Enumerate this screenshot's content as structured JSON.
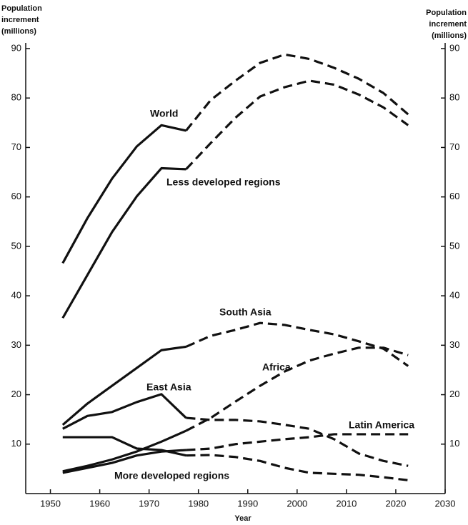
{
  "chart_data": {
    "type": "line",
    "y_label": [
      "Population",
      "increment",
      "(millions)"
    ],
    "y2_label": [
      "Population",
      "increment",
      "(millions)"
    ],
    "x_label": "Year",
    "x": [
      1952.5,
      1957.5,
      1962.5,
      1967.5,
      1972.5,
      1977.5,
      1982.5,
      1987.5,
      1992.5,
      1997.5,
      2002.5,
      2007.5,
      2012.5,
      2017.5,
      2022.5
    ],
    "projection_start": 1977.5,
    "series": [
      {
        "name": "World",
        "color": "#111111",
        "values": [
          46.6,
          55.7,
          63.7,
          70.2,
          74.5,
          73.4,
          79.6,
          83.5,
          87.1,
          88.8,
          87.9,
          86.1,
          83.9,
          81.0,
          76.7
        ]
      },
      {
        "name": "Less developed regions",
        "color": "#111111",
        "values": [
          35.5,
          44.2,
          52.9,
          60.1,
          65.8,
          65.6,
          70.9,
          76.0,
          80.3,
          82.2,
          83.5,
          82.7,
          80.7,
          78.1,
          74.5
        ]
      },
      {
        "name": "South Asia",
        "color": "#111111",
        "values": [
          13.9,
          18.2,
          21.8,
          25.4,
          29.0,
          29.7,
          31.9,
          33.1,
          34.5,
          34.1,
          33.1,
          32.2,
          30.8,
          29.3,
          25.8
        ]
      },
      {
        "name": "Africa",
        "color": "#111111",
        "values": [
          4.5,
          5.6,
          6.9,
          8.5,
          10.5,
          12.7,
          15.3,
          18.6,
          21.8,
          24.7,
          26.9,
          28.3,
          29.5,
          29.5,
          28.0
        ]
      },
      {
        "name": "East Asia",
        "color": "#111111",
        "values": [
          13.1,
          15.7,
          16.5,
          18.5,
          20.1,
          15.3,
          14.9,
          14.9,
          14.6,
          13.9,
          13.1,
          11.0,
          8.1,
          6.6,
          5.6
        ]
      },
      {
        "name": "Latin America",
        "color": "#111111",
        "values": [
          4.2,
          5.2,
          6.2,
          7.7,
          8.5,
          8.8,
          9.1,
          10.0,
          10.5,
          11.0,
          11.4,
          12.0,
          12.0,
          12.0,
          12.0
        ]
      },
      {
        "name": "More developed regions",
        "color": "#111111",
        "values": [
          11.4,
          11.4,
          11.4,
          9.1,
          8.8,
          7.7,
          7.8,
          7.4,
          6.6,
          5.2,
          4.2,
          4.0,
          3.8,
          3.3,
          2.7
        ]
      }
    ],
    "xlim": [
      1945,
      2030
    ],
    "xticks": [
      1950,
      1960,
      1970,
      1980,
      1990,
      2000,
      2010,
      2020,
      2030
    ],
    "ylim": [
      0,
      90
    ],
    "yticks": [
      10,
      20,
      30,
      40,
      50,
      60,
      70,
      80,
      90
    ],
    "y2lim": [
      0,
      90
    ],
    "y2ticks": [
      10,
      20,
      30,
      40,
      50,
      60,
      70,
      80,
      90
    ]
  }
}
